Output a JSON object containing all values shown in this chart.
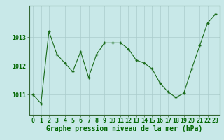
{
  "x": [
    0,
    1,
    2,
    3,
    4,
    5,
    6,
    7,
    8,
    9,
    10,
    11,
    12,
    13,
    14,
    15,
    16,
    17,
    18,
    19,
    20,
    21,
    22,
    23
  ],
  "y": [
    1011.0,
    1010.7,
    1013.2,
    1012.4,
    1012.1,
    1011.8,
    1012.5,
    1011.6,
    1012.4,
    1012.8,
    1012.8,
    1012.8,
    1012.6,
    1012.2,
    1012.1,
    1011.9,
    1011.4,
    1011.1,
    1010.9,
    1011.05,
    1011.9,
    1012.7,
    1013.5,
    1013.8
  ],
  "line_color": "#1a6b1a",
  "marker_color": "#1a6b1a",
  "bg_color": "#c8e8e8",
  "plot_bg_color": "#c8e8e8",
  "grid_color": "#aacccc",
  "xlabel": "Graphe pression niveau de la mer (hPa)",
  "xlabel_fontsize": 7,
  "tick_fontsize": 6,
  "tick_color": "#006600",
  "ylim_min": 1010.3,
  "ylim_max": 1014.1,
  "ytick_values": [
    1011,
    1012,
    1013
  ],
  "xtick_values": [
    0,
    1,
    2,
    3,
    4,
    5,
    6,
    7,
    8,
    9,
    10,
    11,
    12,
    13,
    14,
    15,
    16,
    17,
    18,
    19,
    20,
    21,
    22,
    23
  ]
}
